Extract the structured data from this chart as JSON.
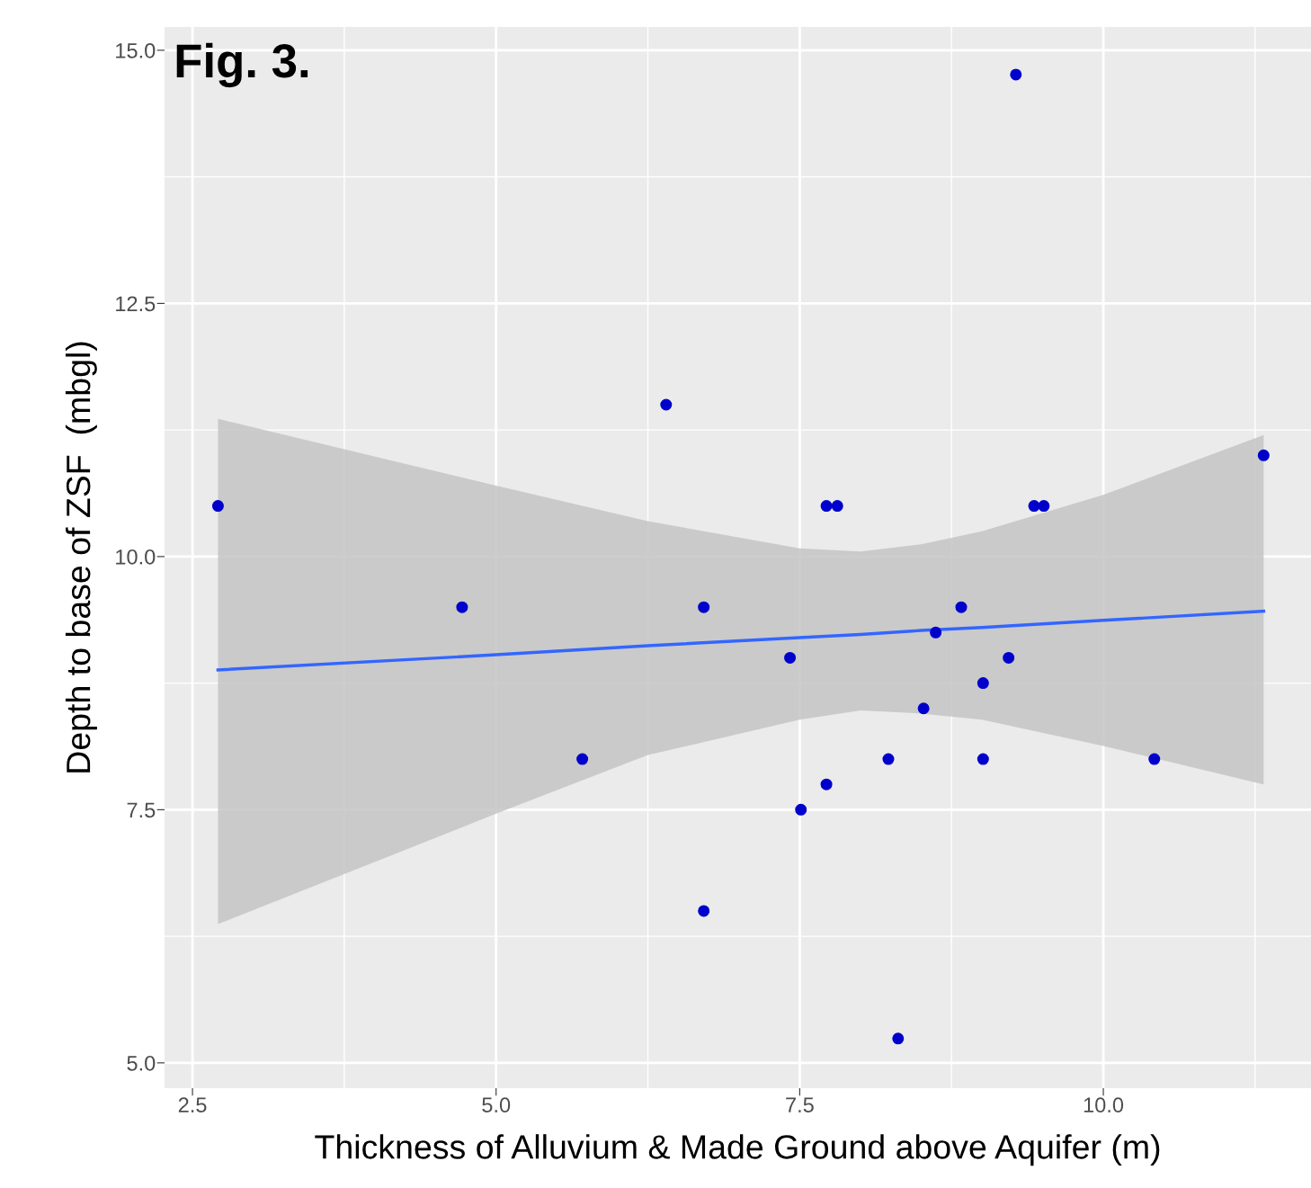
{
  "chart_data": {
    "type": "scatter",
    "title": "Fig. 3.",
    "xlabel": "Thickness of Alluvium & Made Ground above Aquifer (m)",
    "ylabel": "Depth to base of ZSF  (mbgl)",
    "xlim": [
      2.27,
      11.71
    ],
    "ylim": [
      4.75,
      15.23
    ],
    "xticks": [
      2.5,
      {
        "value": 3.75,
        "label": null
      },
      {
        "value": 5,
        "label": "5.0"
      },
      {
        "value": 6.25,
        "label": null
      },
      7.5,
      {
        "value": 8.75,
        "label": null
      },
      {
        "value": 10,
        "label": "10.0"
      },
      {
        "value": 11.25,
        "label": null
      }
    ],
    "yticks": [
      {
        "value": 5,
        "label": "5.0"
      },
      {
        "value": 6.25,
        "label": null
      },
      7.5,
      {
        "value": 8.75,
        "label": null
      },
      {
        "value": 10,
        "label": "10.0"
      },
      {
        "value": 11.25,
        "label": null
      },
      12.5,
      {
        "value": 13.75,
        "label": null
      },
      {
        "value": 15,
        "label": "15.0"
      }
    ],
    "grid": true,
    "series": [
      {
        "type": "line",
        "color": "#3366ff",
        "x": [
          2.71,
          5.0,
          6.25,
          7.5,
          8.0,
          8.5,
          9.0,
          10.0,
          11.32
        ],
        "values": [
          8.88,
          9.03,
          9.12,
          9.2,
          9.23,
          9.27,
          9.3,
          9.37,
          9.46
        ],
        "lower": [
          6.37,
          7.46,
          8.04,
          8.39,
          8.48,
          8.45,
          8.39,
          8.13,
          7.75
        ],
        "upper": [
          11.36,
          10.7,
          10.35,
          10.08,
          10.05,
          10.12,
          10.25,
          10.61,
          11.2
        ]
      },
      {
        "marker": "circle",
        "color": "#0000cc",
        "x": [
          2.71,
          4.72,
          5.71,
          6.4,
          6.71,
          6.71,
          7.42,
          7.51,
          7.72,
          7.72,
          7.81,
          8.23,
          8.31,
          8.52,
          8.62,
          8.83,
          9.01,
          9.01,
          9.22,
          9.28,
          9.43,
          9.51,
          10.42,
          11.32
        ],
        "values": [
          10.5,
          9.5,
          8.0,
          11.5,
          9.5,
          6.5,
          9.0,
          7.5,
          7.75,
          10.5,
          10.5,
          8.0,
          5.24,
          8.5,
          9.25,
          9.5,
          8.75,
          8.0,
          9.0,
          14.76,
          10.5,
          10.5,
          8.0,
          11.0
        ]
      }
    ]
  }
}
